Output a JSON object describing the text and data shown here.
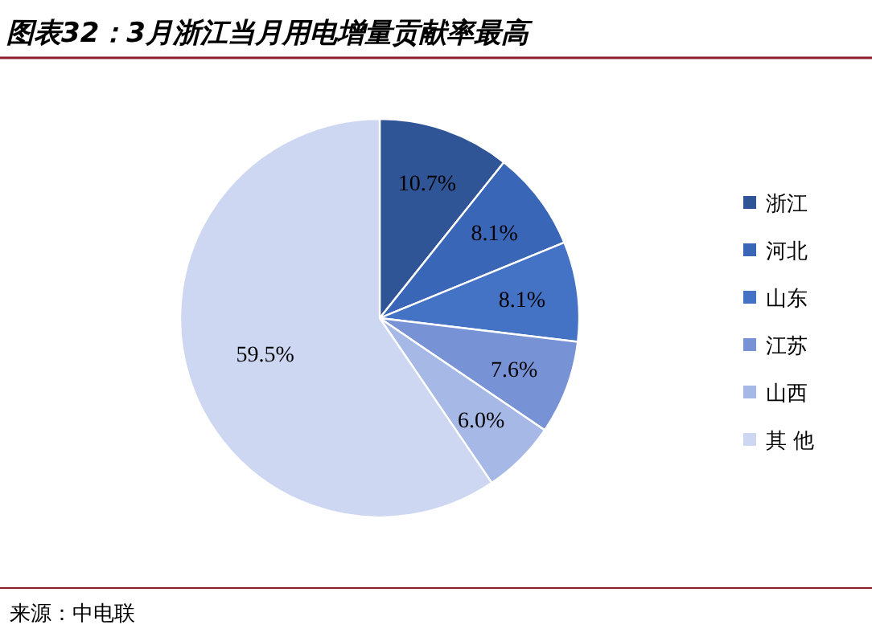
{
  "chart_data": {
    "type": "pie",
    "title": "图表32：3月浙江当月用电增量贡献率最高",
    "categories": [
      "浙江",
      "河北",
      "山东",
      "江苏",
      "山西",
      "其 他"
    ],
    "values": [
      10.7,
      8.1,
      8.1,
      7.6,
      6.0,
      59.5
    ],
    "colors": [
      "#2f5597",
      "#3a66b8",
      "#4472c4",
      "#7793d6",
      "#a6b8e6",
      "#cdd7f1"
    ],
    "value_labels": [
      "10.7%",
      "8.1%",
      "8.1%",
      "7.6%",
      "6.0%",
      "59.5%"
    ],
    "legend": "right",
    "annotations": [
      "来源：中电联"
    ]
  }
}
